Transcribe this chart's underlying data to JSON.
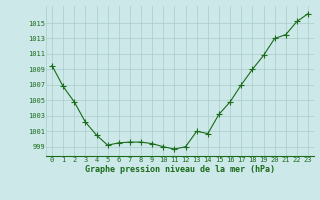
{
  "x": [
    0,
    1,
    2,
    3,
    4,
    5,
    6,
    7,
    8,
    9,
    10,
    11,
    12,
    13,
    14,
    15,
    16,
    17,
    18,
    19,
    20,
    21,
    22,
    23
  ],
  "y": [
    1009.5,
    1006.8,
    1004.8,
    1002.2,
    1000.5,
    999.2,
    999.5,
    999.6,
    999.6,
    999.4,
    999.0,
    998.7,
    999.0,
    1001.0,
    1000.7,
    1003.2,
    1004.8,
    1007.0,
    1009.0,
    1010.8,
    1013.0,
    1013.5,
    1015.2,
    1016.2
  ],
  "line_color": "#1a6b1a",
  "marker": "+",
  "marker_color": "#1a6b1a",
  "bg_color": "#cce8e8",
  "grid_color": "#aacccc",
  "xlabel": "Graphe pression niveau de la mer (hPa)",
  "xlabel_color": "#1a6b1a",
  "tick_color": "#1a6b1a",
  "ylabel_ticks": [
    999,
    1001,
    1003,
    1005,
    1007,
    1009,
    1011,
    1013,
    1015
  ],
  "ylim": [
    997.8,
    1017.2
  ],
  "xlim": [
    -0.5,
    23.5
  ],
  "xticks": [
    0,
    1,
    2,
    3,
    4,
    5,
    6,
    7,
    8,
    9,
    10,
    11,
    12,
    13,
    14,
    15,
    16,
    17,
    18,
    19,
    20,
    21,
    22,
    23
  ],
  "xtick_labels": [
    "0",
    "1",
    "2",
    "3",
    "4",
    "5",
    "6",
    "7",
    "8",
    "9",
    "10",
    "11",
    "12",
    "13",
    "14",
    "15",
    "16",
    "17",
    "18",
    "19",
    "20",
    "21",
    "22",
    "23"
  ],
  "tick_fontsize": 5.0,
  "xlabel_fontsize": 6.0,
  "linewidth": 0.8,
  "markersize": 4.0,
  "markeredgewidth": 0.8
}
